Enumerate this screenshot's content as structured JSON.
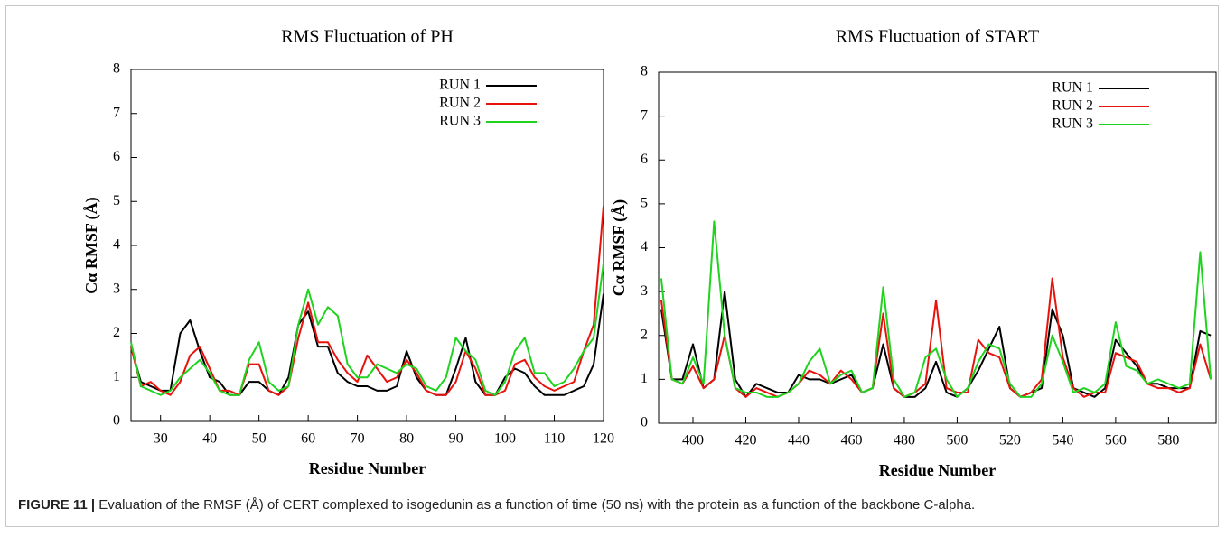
{
  "chart_data": [
    {
      "type": "line",
      "title": "RMS Fluctuation of PH",
      "xlabel": "Residue Number",
      "ylabel": "Cα RMSF (Å)",
      "x": [
        24,
        26,
        28,
        30,
        32,
        34,
        36,
        38,
        40,
        42,
        44,
        46,
        48,
        50,
        52,
        54,
        56,
        58,
        60,
        62,
        64,
        66,
        68,
        70,
        72,
        74,
        76,
        78,
        80,
        82,
        84,
        86,
        88,
        90,
        92,
        94,
        96,
        98,
        100,
        102,
        104,
        106,
        108,
        110,
        112,
        114,
        116,
        118,
        120
      ],
      "series": [
        {
          "name": "RUN 1",
          "color": "#000000",
          "values": [
            1.7,
            0.9,
            0.8,
            0.7,
            0.7,
            2.0,
            2.3,
            1.6,
            1.0,
            0.9,
            0.6,
            0.6,
            0.9,
            0.9,
            0.7,
            0.6,
            1.0,
            2.2,
            2.5,
            1.7,
            1.7,
            1.1,
            0.9,
            0.8,
            0.8,
            0.7,
            0.7,
            0.8,
            1.6,
            1.0,
            0.7,
            0.6,
            0.6,
            1.2,
            1.9,
            0.9,
            0.6,
            0.6,
            1.0,
            1.2,
            1.1,
            0.8,
            0.6,
            0.6,
            0.6,
            0.7,
            0.8,
            1.3,
            2.9
          ]
        },
        {
          "name": "RUN 2",
          "color": "#e8120c",
          "values": [
            1.7,
            0.8,
            0.9,
            0.7,
            0.6,
            0.9,
            1.5,
            1.7,
            1.2,
            0.7,
            0.7,
            0.6,
            1.3,
            1.3,
            0.7,
            0.6,
            0.8,
            1.9,
            2.7,
            1.8,
            1.8,
            1.4,
            1.1,
            0.9,
            1.5,
            1.2,
            0.9,
            1.0,
            1.4,
            1.1,
            0.7,
            0.6,
            0.6,
            0.9,
            1.6,
            1.2,
            0.6,
            0.6,
            0.7,
            1.3,
            1.4,
            1.0,
            0.8,
            0.7,
            0.8,
            0.9,
            1.6,
            2.2,
            4.9
          ]
        },
        {
          "name": "RUN 3",
          "color": "#1fd31f",
          "values": [
            1.8,
            0.8,
            0.7,
            0.6,
            0.7,
            1.0,
            1.2,
            1.4,
            1.1,
            0.7,
            0.6,
            0.6,
            1.4,
            1.8,
            0.9,
            0.7,
            0.8,
            2.2,
            3.0,
            2.2,
            2.6,
            2.4,
            1.3,
            1.0,
            1.0,
            1.3,
            1.2,
            1.1,
            1.3,
            1.2,
            0.8,
            0.7,
            1.0,
            1.9,
            1.6,
            1.4,
            0.7,
            0.6,
            0.9,
            1.6,
            1.9,
            1.1,
            1.1,
            0.8,
            0.9,
            1.2,
            1.6,
            1.9,
            3.6
          ]
        }
      ],
      "xlim": [
        24,
        120
      ],
      "ylim": [
        0,
        8
      ],
      "xticks": [
        30,
        40,
        50,
        60,
        70,
        80,
        90,
        100,
        110,
        120
      ],
      "yticks": [
        0,
        1,
        2,
        3,
        4,
        5,
        6,
        7,
        8
      ],
      "legend": "upper right"
    },
    {
      "type": "line",
      "title": "RMS Fluctuation of START",
      "xlabel": "Residue Number",
      "ylabel": "Cα RMSF (Å)",
      "x": [
        388,
        392,
        396,
        400,
        404,
        408,
        412,
        416,
        420,
        424,
        428,
        432,
        436,
        440,
        444,
        448,
        452,
        456,
        460,
        464,
        468,
        472,
        476,
        480,
        484,
        488,
        492,
        496,
        500,
        504,
        508,
        512,
        516,
        520,
        524,
        528,
        532,
        536,
        540,
        544,
        548,
        552,
        556,
        560,
        564,
        568,
        572,
        576,
        580,
        584,
        588,
        592,
        596
      ],
      "series": [
        {
          "name": "RUN 1",
          "color": "#000000",
          "values": [
            2.6,
            1.0,
            1.0,
            1.8,
            0.8,
            1.0,
            3.0,
            1.0,
            0.6,
            0.9,
            0.8,
            0.7,
            0.7,
            1.1,
            1.0,
            1.0,
            0.9,
            1.0,
            1.1,
            0.7,
            0.8,
            1.8,
            0.8,
            0.6,
            0.6,
            0.8,
            1.4,
            0.7,
            0.6,
            0.8,
            1.2,
            1.7,
            2.2,
            0.8,
            0.6,
            0.7,
            0.8,
            2.6,
            2.0,
            0.8,
            0.7,
            0.6,
            0.8,
            1.9,
            1.6,
            1.3,
            0.9,
            0.9,
            0.8,
            0.8,
            0.8,
            2.1,
            2.0
          ]
        },
        {
          "name": "RUN 2",
          "color": "#e8120c",
          "values": [
            2.8,
            1.0,
            0.9,
            1.3,
            0.8,
            1.0,
            2.0,
            0.8,
            0.6,
            0.8,
            0.7,
            0.6,
            0.7,
            0.9,
            1.2,
            1.1,
            0.9,
            1.2,
            1.0,
            0.7,
            0.8,
            2.5,
            0.8,
            0.6,
            0.7,
            0.9,
            2.8,
            0.8,
            0.7,
            0.7,
            1.9,
            1.6,
            1.5,
            0.8,
            0.6,
            0.7,
            1.0,
            3.3,
            1.5,
            0.8,
            0.6,
            0.7,
            0.7,
            1.6,
            1.5,
            1.4,
            0.9,
            0.8,
            0.8,
            0.7,
            0.8,
            1.8,
            1.0
          ]
        },
        {
          "name": "RUN 3",
          "color": "#1fd31f",
          "values": [
            3.3,
            1.0,
            0.9,
            1.5,
            0.9,
            4.6,
            2.0,
            0.8,
            0.7,
            0.7,
            0.6,
            0.6,
            0.7,
            0.9,
            1.4,
            1.7,
            0.9,
            1.1,
            1.2,
            0.7,
            0.8,
            3.1,
            1.0,
            0.6,
            0.7,
            1.5,
            1.7,
            1.0,
            0.6,
            0.8,
            1.4,
            1.8,
            1.7,
            0.9,
            0.6,
            0.6,
            0.9,
            2.0,
            1.4,
            0.7,
            0.8,
            0.7,
            0.9,
            2.3,
            1.3,
            1.2,
            0.9,
            1.0,
            0.9,
            0.8,
            0.9,
            3.9,
            1.0
          ]
        }
      ],
      "xlim": [
        387,
        598
      ],
      "ylim": [
        0,
        8
      ],
      "xticks": [
        400,
        420,
        440,
        460,
        480,
        500,
        520,
        540,
        560,
        580
      ],
      "yticks": [
        0,
        1,
        2,
        3,
        4,
        5,
        6,
        7,
        8
      ],
      "legend": "upper right"
    }
  ],
  "caption": {
    "label": "FIGURE 11 |",
    "text": "Evaluation of the RMSF (Å) of CERT complexed to isogedunin as a function of time (50 ns) with the protein as a function of the backbone C-alpha."
  }
}
